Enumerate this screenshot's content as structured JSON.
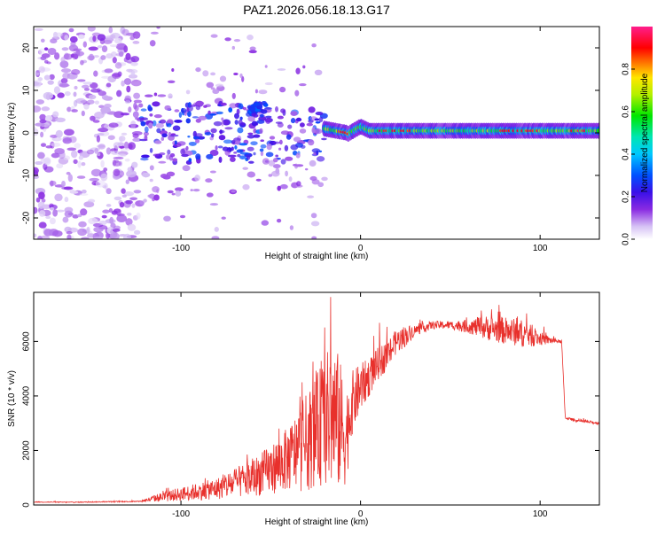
{
  "title": "PAZ1.2026.056.18.13.G17",
  "chart_data": [
    {
      "type": "heatmap",
      "xlabel": "Height of straight line (km)",
      "ylabel": "Frequency (Hz)",
      "xlim": [
        -182,
        133
      ],
      "ylim": [
        -25,
        25
      ],
      "xticks": [
        -100,
        0,
        100
      ],
      "xtick_labels": [
        "-100",
        "0",
        "100"
      ],
      "yticks": [
        -20,
        -10,
        0,
        10,
        20
      ],
      "ytick_labels": [
        "-20",
        "-10",
        "0",
        "10",
        "20"
      ],
      "colorbar": {
        "label": "Normalized spectral amplitude",
        "range": [
          0,
          1
        ],
        "ticks": [
          0,
          0.2,
          0.4,
          0.6,
          0.8
        ],
        "tick_labels": [
          "0.0",
          "0.2",
          "0.4",
          "0.6",
          "0.8"
        ],
        "colormap": "rainbow (white-violet-blue-cyan-green-yellow-red-magenta)"
      },
      "regions": [
        {
          "x": [
            -182,
            -123
          ],
          "description": "diffuse noise spread over full frequency range",
          "amplitude": 0.05
        },
        {
          "x": [
            -123,
            -20
          ],
          "description": "scattered multipath energy near 0 to +/-10 Hz",
          "amplitude": 0.15
        },
        {
          "x": [
            -20,
            133
          ],
          "description": "narrow coherent tone near 0 Hz",
          "freq": 0.5,
          "amplitude": 0.6
        }
      ],
      "ridge_points": [
        {
          "x": -20,
          "freq": 1
        },
        {
          "x": -10,
          "freq": 0
        },
        {
          "x": -5,
          "freq": -0.5
        },
        {
          "x": 0,
          "freq": 1.5
        },
        {
          "x": 20,
          "freq": 0.5
        },
        {
          "x": 133,
          "freq": 0.5
        }
      ]
    },
    {
      "type": "line",
      "xlabel": "Height of straight line (km)",
      "ylabel": "SNR (10 * v/v)",
      "xlim": [
        -182,
        133
      ],
      "ylim": [
        0,
        7800
      ],
      "xticks": [
        -100,
        0,
        100
      ],
      "xtick_labels": [
        "-100",
        "0",
        "100"
      ],
      "yticks": [
        0,
        2000,
        4000,
        6000
      ],
      "ytick_labels": [
        "0",
        "2000",
        "4000",
        "6000"
      ],
      "series": [
        {
          "name": "SNR",
          "color": "#e8302c",
          "x": [
            -182,
            -160,
            -140,
            -123,
            -110,
            -100,
            -90,
            -80,
            -70,
            -60,
            -50,
            -40,
            -35,
            -30,
            -25,
            -20,
            -15,
            -12,
            -8,
            -5,
            0,
            5,
            10,
            15,
            20,
            25,
            30,
            40,
            50,
            60,
            70,
            80,
            90,
            95,
            100,
            105,
            110,
            112,
            114,
            120,
            133
          ],
          "values": [
            110,
            100,
            120,
            130,
            300,
            400,
            500,
            600,
            800,
            1000,
            1300,
            1700,
            2000,
            2300,
            2700,
            3100,
            3300,
            3000,
            2500,
            3700,
            4300,
            4700,
            5200,
            5500,
            6000,
            6200,
            6400,
            6600,
            6600,
            6550,
            6500,
            6400,
            6300,
            6200,
            6100,
            6050,
            6000,
            6000,
            3200,
            3100,
            3000
          ],
          "noise": [
            15,
            15,
            20,
            20,
            180,
            250,
            320,
            400,
            550,
            700,
            900,
            1200,
            1500,
            1800,
            2000,
            2400,
            2800,
            2500,
            1800,
            1200,
            900,
            700,
            600,
            550,
            450,
            400,
            200,
            150,
            150,
            250,
            450,
            500,
            500,
            400,
            250,
            150,
            60,
            60,
            50,
            50,
            50
          ]
        }
      ]
    }
  ]
}
